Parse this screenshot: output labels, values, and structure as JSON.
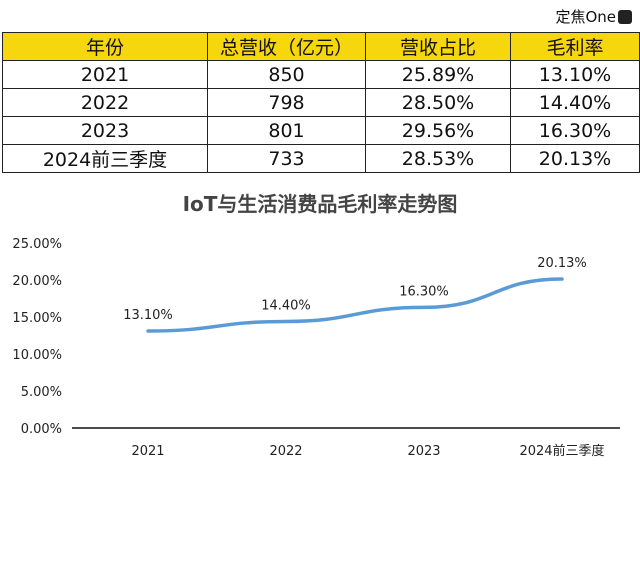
{
  "watermark": {
    "text": "定焦One"
  },
  "table": {
    "headers": [
      "年份",
      "总营收（亿元）",
      "营收占比",
      "毛利率"
    ],
    "rows": [
      [
        "2021",
        "850",
        "25.89%",
        "13.10%"
      ],
      [
        "2022",
        "798",
        "28.50%",
        "14.40%"
      ],
      [
        "2023",
        "801",
        "29.56%",
        "16.30%"
      ],
      [
        "2024前三季度",
        "733",
        "28.53%",
        "20.13%"
      ]
    ]
  },
  "colors": {
    "header_bg": "#f6d70d",
    "line": "#5b9bd5",
    "axis": "#111111"
  },
  "chart_data": {
    "type": "line",
    "title": "IoT与生活消费品毛利率走势图",
    "categories": [
      "2021",
      "2022",
      "2023",
      "2024前三季度"
    ],
    "series": [
      {
        "values": [
          13.1,
          14.4,
          16.3,
          20.13
        ],
        "labels": [
          "13.10%",
          "14.40%",
          "16.30%",
          "20.13%"
        ]
      }
    ],
    "y_ticks": [
      "0.00%",
      "5.00%",
      "10.00%",
      "15.00%",
      "20.00%",
      "25.00%"
    ],
    "ylim": [
      0,
      25
    ],
    "grid": false,
    "legend": "none"
  }
}
